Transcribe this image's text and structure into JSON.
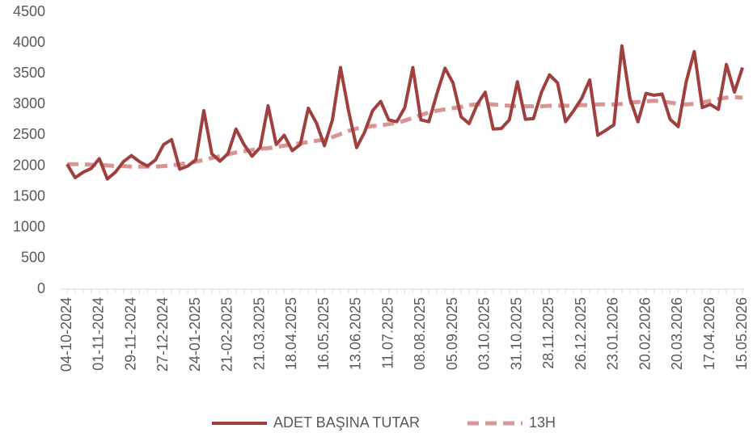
{
  "chart_data": {
    "type": "line",
    "categories": [
      "04-10-2024",
      null,
      null,
      null,
      "01-11-2024",
      null,
      null,
      null,
      "29-11-2024",
      null,
      null,
      null,
      "27-12-2024",
      null,
      null,
      null,
      "24-01-2025",
      null,
      null,
      null,
      "21-02-2025",
      null,
      null,
      null,
      "21.03.2025",
      null,
      null,
      null,
      "18.04.2025",
      null,
      null,
      null,
      "16.05.2025",
      null,
      null,
      null,
      "13.06.2025",
      null,
      null,
      null,
      "11.07.2025",
      null,
      null,
      null,
      "08.08.2025",
      null,
      null,
      null,
      "05.09.2025",
      null,
      null,
      null,
      "03.10.2025",
      null,
      null,
      null,
      "31.10.2025",
      null,
      null,
      null,
      "28.11.2025",
      null,
      null,
      null,
      "26.12.2025",
      null,
      null,
      null,
      "23.01.2026",
      null,
      null,
      null,
      "20.02.2026",
      null,
      null,
      null,
      "20.03.2026",
      null,
      null,
      null,
      "17.04.2026",
      null,
      null,
      null,
      "15.05.2026"
    ],
    "series": [
      {
        "name": "ADET BAŞINA TUTAR",
        "color": "#a0403e",
        "dashed": false,
        "values": [
          2030,
          1810,
          1900,
          1960,
          2120,
          1790,
          1900,
          2070,
          2170,
          2070,
          2000,
          2100,
          2350,
          2430,
          1950,
          2000,
          2100,
          2900,
          2200,
          2080,
          2200,
          2600,
          2350,
          2160,
          2300,
          2980,
          2350,
          2500,
          2250,
          2350,
          2940,
          2700,
          2330,
          2750,
          3600,
          2900,
          2300,
          2550,
          2900,
          3050,
          2750,
          2720,
          2950,
          3600,
          2750,
          2720,
          3180,
          3590,
          3350,
          2800,
          2690,
          3000,
          3200,
          2600,
          2610,
          2750,
          3370,
          2760,
          2770,
          3200,
          3480,
          3350,
          2720,
          2900,
          3100,
          3400,
          2500,
          2580,
          2670,
          3950,
          3100,
          2720,
          3180,
          3150,
          3170,
          2760,
          2640,
          3370,
          3860,
          2950,
          3000,
          2920,
          3650,
          3200,
          3600
        ]
      },
      {
        "name": "13H",
        "color": "#d99594",
        "dashed": true,
        "values": [
          2030,
          2030,
          2030,
          2020,
          2020,
          2010,
          2000,
          2000,
          1990,
          1990,
          1990,
          1990,
          2000,
          2010,
          2030,
          2050,
          2070,
          2100,
          2130,
          2160,
          2190,
          2220,
          2240,
          2260,
          2280,
          2290,
          2310,
          2330,
          2350,
          2370,
          2390,
          2410,
          2430,
          2470,
          2520,
          2570,
          2610,
          2630,
          2650,
          2660,
          2680,
          2700,
          2740,
          2780,
          2830,
          2870,
          2900,
          2920,
          2940,
          2960,
          2990,
          3000,
          3010,
          3000,
          2990,
          2980,
          2970,
          2970,
          2970,
          2970,
          2980,
          2980,
          2980,
          2980,
          2990,
          2990,
          3000,
          3000,
          3000,
          3010,
          3030,
          3040,
          3050,
          3060,
          3050,
          3030,
          3010,
          3000,
          3010,
          3030,
          3060,
          3090,
          3110,
          3120,
          3110
        ]
      }
    ],
    "ylim": [
      0,
      4500
    ],
    "yticks": [
      0,
      500,
      1000,
      1500,
      2000,
      2500,
      3000,
      3500,
      4000,
      4500
    ],
    "grid": false,
    "legend": "bottom"
  }
}
